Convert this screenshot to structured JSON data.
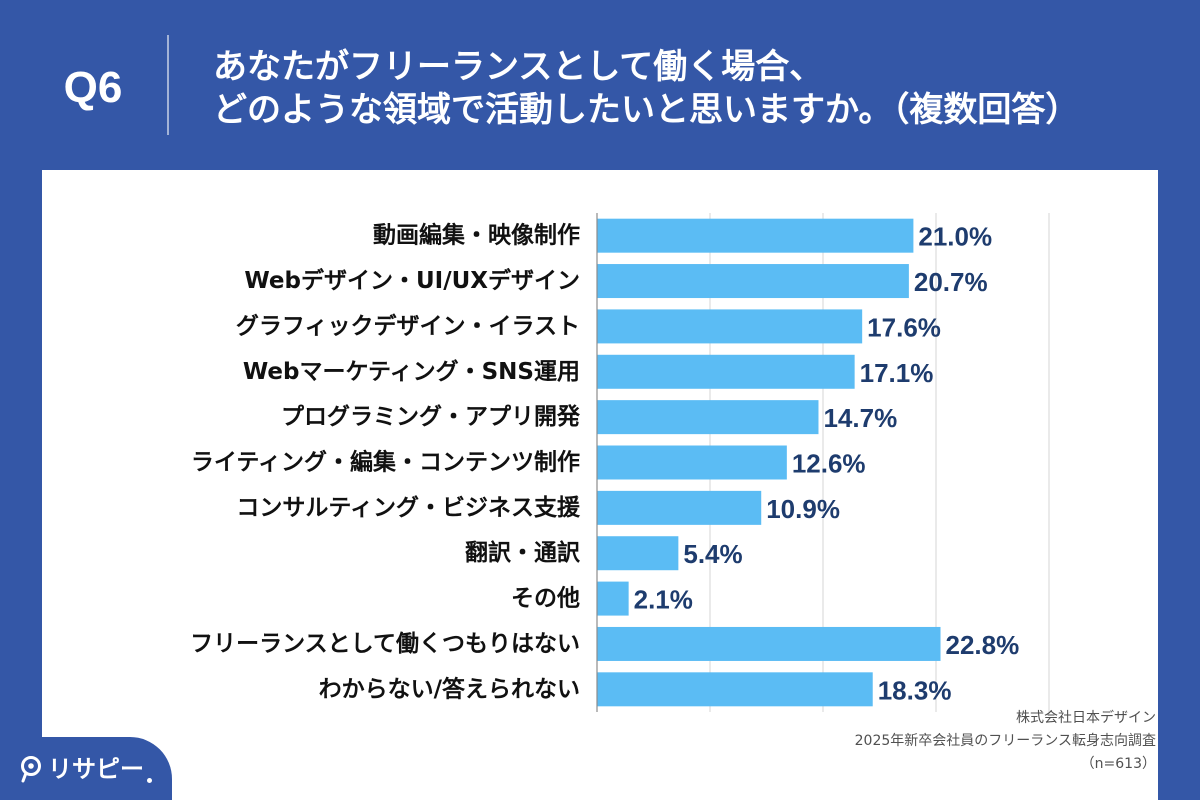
{
  "header": {
    "question_number": "Q6"
  },
  "chart_data": {
    "type": "bar",
    "orientation": "horizontal",
    "title": [
      "あなたがフリーランスとして働く場合、",
      "どのような領域で活動したいと思いますか。（複数回答）"
    ],
    "categories": [
      "動画編集・映像制作",
      "Webデザイン・UI/UXデザイン",
      "グラフィックデザイン・イラスト",
      "Webマーケティング・SNS運用",
      "プログラミング・アプリ開発",
      "ライティング・編集・コンテンツ制作",
      "コンサルティング・ビジネス支援",
      "翻訳・通訳",
      "その他",
      "フリーランスとして働くつもりはない",
      "わからない/答えられない"
    ],
    "values": [
      21.0,
      20.7,
      17.6,
      17.1,
      14.7,
      12.6,
      10.9,
      5.4,
      2.1,
      22.8,
      18.3
    ],
    "data_labels": [
      "21.0%",
      "20.7%",
      "17.6%",
      "17.1%",
      "14.7%",
      "12.6%",
      "10.9%",
      "5.4%",
      "2.1%",
      "22.8%",
      "18.3%"
    ],
    "xlim": [
      0,
      30
    ],
    "x_gridlines": [
      7.5,
      15,
      22.5,
      30
    ],
    "grid": true,
    "bar_color": "#5bbcf4",
    "data_label_color": "#1e3c6e"
  },
  "footer": {
    "company": "株式会社日本デザイン",
    "survey_title": "2025年新卒会社員のフリーランス転身志向調査",
    "sample_size": "（n=613）"
  },
  "brand": {
    "logo_text": "リサピー",
    "logo_icon": "location-pin-icon"
  },
  "colors": {
    "background": "#3457a7",
    "panel": "#ffffff",
    "category_label": "#111111",
    "footer_text": "#505050",
    "gridline": "#d4d4d4",
    "axis_line": "#8c8c8c"
  }
}
